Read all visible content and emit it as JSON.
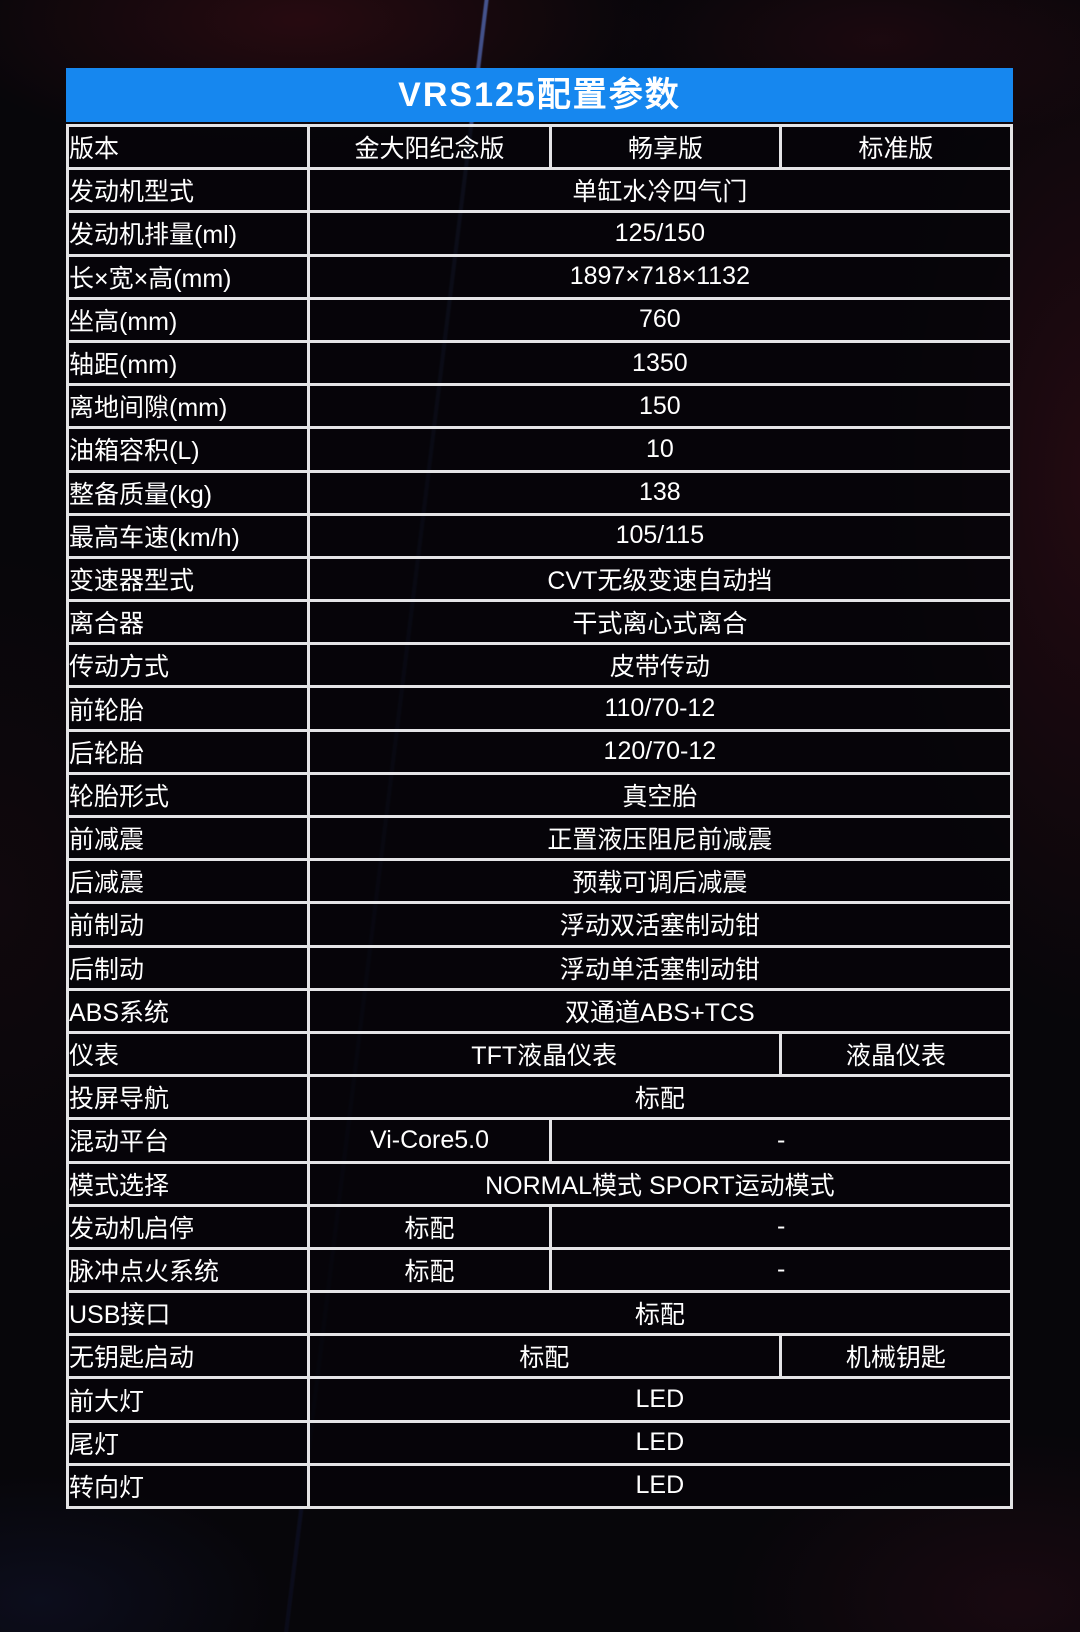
{
  "title": "VRS125配置参数",
  "accent_blue": "#1687ef",
  "table": {
    "columns": [
      "版本",
      "金大阳纪念版",
      "畅享版",
      "标准版"
    ],
    "rows": [
      {
        "label": "发动机型式",
        "cells": [
          {
            "text": "单缸水冷四气门",
            "span": 3
          }
        ]
      },
      {
        "label": "发动机排量(ml)",
        "cells": [
          {
            "text": "125/150",
            "span": 3
          }
        ]
      },
      {
        "label": "长×宽×高(mm)",
        "cells": [
          {
            "text": "1897×718×1132",
            "span": 3
          }
        ]
      },
      {
        "label": "坐高(mm)",
        "cells": [
          {
            "text": "760",
            "span": 3
          }
        ]
      },
      {
        "label": "轴距(mm)",
        "cells": [
          {
            "text": "1350",
            "span": 3
          }
        ]
      },
      {
        "label": "离地间隙(mm)",
        "cells": [
          {
            "text": "150",
            "span": 3
          }
        ]
      },
      {
        "label": "油箱容积(L)",
        "cells": [
          {
            "text": "10",
            "span": 3
          }
        ]
      },
      {
        "label": "整备质量(kg)",
        "cells": [
          {
            "text": "138",
            "span": 3
          }
        ]
      },
      {
        "label": "最高车速(km/h)",
        "cells": [
          {
            "text": "105/115",
            "span": 3
          }
        ]
      },
      {
        "label": "变速器型式",
        "cells": [
          {
            "text": "CVT无级变速自动挡",
            "span": 3
          }
        ]
      },
      {
        "label": "离合器",
        "cells": [
          {
            "text": "干式离心式离合",
            "span": 3
          }
        ]
      },
      {
        "label": "传动方式",
        "cells": [
          {
            "text": "皮带传动",
            "span": 3
          }
        ]
      },
      {
        "label": "前轮胎",
        "cells": [
          {
            "text": "110/70-12",
            "span": 3
          }
        ]
      },
      {
        "label": "后轮胎",
        "cells": [
          {
            "text": "120/70-12",
            "span": 3
          }
        ]
      },
      {
        "label": "轮胎形式",
        "cells": [
          {
            "text": "真空胎",
            "span": 3
          }
        ]
      },
      {
        "label": "前减震",
        "cells": [
          {
            "text": "正置液压阻尼前减震",
            "span": 3
          }
        ]
      },
      {
        "label": "后减震",
        "cells": [
          {
            "text": "预载可调后减震",
            "span": 3
          }
        ]
      },
      {
        "label": "前制动",
        "cells": [
          {
            "text": "浮动双活塞制动钳",
            "span": 3
          }
        ]
      },
      {
        "label": "后制动",
        "cells": [
          {
            "text": "浮动单活塞制动钳",
            "span": 3
          }
        ]
      },
      {
        "label": "ABS系统",
        "cells": [
          {
            "text": "双通道ABS+TCS",
            "span": 3
          }
        ]
      },
      {
        "label": "仪表",
        "cells": [
          {
            "text": "TFT液晶仪表",
            "span": 2
          },
          {
            "text": "液晶仪表",
            "span": 1
          }
        ]
      },
      {
        "label": "投屏导航",
        "cells": [
          {
            "text": "标配",
            "span": 3
          }
        ]
      },
      {
        "label": "混动平台",
        "cells": [
          {
            "text": "Vi-Core5.0",
            "span": 1
          },
          {
            "text": "-",
            "span": 2
          }
        ]
      },
      {
        "label": "模式选择",
        "cells": [
          {
            "text": "NORMAL模式 SPORT运动模式",
            "span": 3
          }
        ]
      },
      {
        "label": "发动机启停",
        "cells": [
          {
            "text": "标配",
            "span": 1
          },
          {
            "text": "-",
            "span": 2
          }
        ]
      },
      {
        "label": "脉冲点火系统",
        "cells": [
          {
            "text": "标配",
            "span": 1
          },
          {
            "text": "-",
            "span": 2
          }
        ]
      },
      {
        "label": "USB接口",
        "cells": [
          {
            "text": "标配",
            "span": 3
          }
        ]
      },
      {
        "label": "无钥匙启动",
        "cells": [
          {
            "text": "标配",
            "span": 2
          },
          {
            "text": "机械钥匙",
            "span": 1
          }
        ]
      },
      {
        "label": "前大灯",
        "cells": [
          {
            "text": "LED",
            "span": 3
          }
        ]
      },
      {
        "label": "尾灯",
        "cells": [
          {
            "text": "LED",
            "span": 3
          }
        ]
      },
      {
        "label": "转向灯",
        "cells": [
          {
            "text": "LED",
            "span": 3
          }
        ]
      }
    ]
  }
}
